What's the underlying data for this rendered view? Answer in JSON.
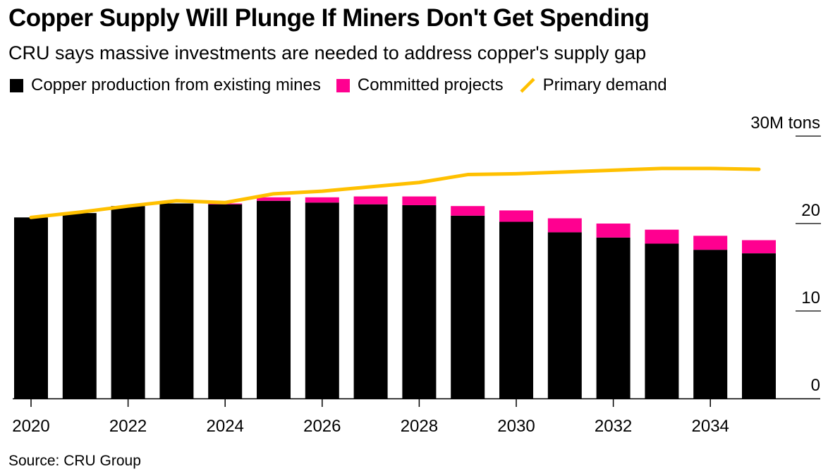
{
  "header": {
    "title": "Copper Supply Will Plunge If Miners Don't Get Spending",
    "subtitle": "CRU says massive investments are needed to address copper's supply gap"
  },
  "legend": [
    {
      "label": "Copper production from existing mines",
      "color": "#000000",
      "kind": "square"
    },
    {
      "label": "Committed projects",
      "color": "#ff0090",
      "kind": "square"
    },
    {
      "label": "Primary demand",
      "color": "#ffc000",
      "kind": "line"
    }
  ],
  "footer": {
    "source": "Source: CRU Group"
  },
  "chart_data": {
    "type": "bar",
    "stacked": true,
    "title": "Copper Supply Will Plunge If Miners Don't Get Spending",
    "subtitle": "CRU says massive investments are needed to address copper's supply gap",
    "xlabel": "",
    "ylabel": "M tons",
    "x": [
      2020,
      2021,
      2022,
      2023,
      2024,
      2025,
      2026,
      2027,
      2028,
      2029,
      2030,
      2031,
      2032,
      2033,
      2034,
      2035
    ],
    "x_tick_labels": [
      "2020",
      "2022",
      "2024",
      "2026",
      "2028",
      "2030",
      "2032",
      "2034"
    ],
    "x_ticks": [
      2020,
      2022,
      2024,
      2026,
      2028,
      2030,
      2032,
      2034
    ],
    "y_ticks": [
      0,
      10,
      20,
      30
    ],
    "y_tick_labels": [
      "0",
      "10",
      "20",
      "30M tons"
    ],
    "ylim": [
      0,
      30
    ],
    "grid": false,
    "legend_position": "top-left",
    "y_axis_side": "right",
    "series": [
      {
        "name": "Copper production from existing mines",
        "type": "bar",
        "color": "#000000",
        "values": [
          20.7,
          21.2,
          22.0,
          22.3,
          22.2,
          22.6,
          22.4,
          22.2,
          22.1,
          20.9,
          20.2,
          19.0,
          18.4,
          17.7,
          17.0,
          16.6
        ]
      },
      {
        "name": "Committed projects",
        "type": "bar",
        "color": "#ff0090",
        "values": [
          0.0,
          0.0,
          0.0,
          0.0,
          0.1,
          0.4,
          0.6,
          0.9,
          1.0,
          1.1,
          1.3,
          1.6,
          1.6,
          1.6,
          1.6,
          1.5
        ]
      },
      {
        "name": "Primary demand",
        "type": "line",
        "color": "#ffc000",
        "values": [
          20.7,
          21.3,
          22.0,
          22.6,
          22.4,
          23.4,
          23.7,
          24.2,
          24.7,
          25.6,
          25.7,
          25.9,
          26.1,
          26.3,
          26.3,
          26.2
        ]
      }
    ]
  }
}
